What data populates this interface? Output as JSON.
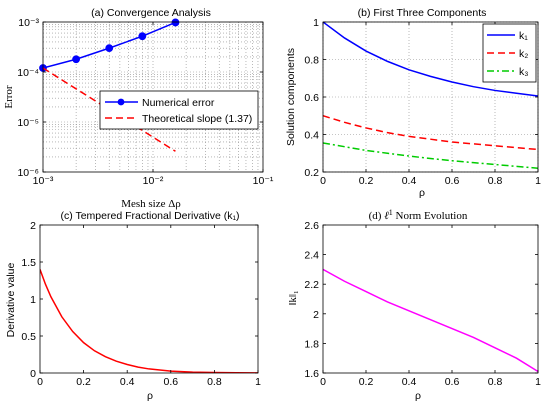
{
  "chart_data": [
    {
      "panel": "a",
      "type": "line",
      "title": "(a) Convergence Analysis",
      "xlabel": "Mesh size Δρ",
      "ylabel": "Error",
      "xscale": "log",
      "yscale": "log",
      "xlim": [
        0.001,
        0.1
      ],
      "ylim": [
        1e-06,
        0.001
      ],
      "xticks": [
        "10⁻³",
        "10⁻²",
        "10⁻¹"
      ],
      "yticks": [
        "10⁻³",
        "10⁻⁴",
        "10⁻⁵",
        "10⁻⁶"
      ],
      "grid": true,
      "legend": "center-right",
      "series": [
        {
          "name": "Numerical error",
          "color": "#0000ff",
          "style": "solid",
          "marker": "circle",
          "x": [
            0.001,
            0.002,
            0.004,
            0.008,
            0.016
          ],
          "y": [
            0.00012,
            0.00018,
            0.0003,
            0.00052,
            0.00098
          ]
        },
        {
          "name": "Theoretical slope (1.37)",
          "color": "#ff0000",
          "style": "dashed",
          "x": [
            0.001,
            0.016
          ],
          "y": [
            0.00012,
            2.6e-06
          ]
        }
      ]
    },
    {
      "panel": "b",
      "type": "line",
      "title": "(b) First Three Components",
      "xlabel": "ρ",
      "ylabel": "Solution components",
      "xlim": [
        0,
        1
      ],
      "ylim": [
        0.2,
        1
      ],
      "xticks": [
        "0",
        "0.2",
        "0.4",
        "0.6",
        "0.8",
        "1"
      ],
      "yticks": [
        "0.2",
        "0.4",
        "0.6",
        "0.8",
        "1"
      ],
      "grid": true,
      "legend": "top-right",
      "series": [
        {
          "name": "k₁",
          "color": "#0000ff",
          "style": "solid",
          "x": [
            0,
            0.1,
            0.2,
            0.3,
            0.4,
            0.5,
            0.6,
            0.7,
            0.8,
            0.9,
            1.0
          ],
          "y": [
            1.0,
            0.915,
            0.845,
            0.79,
            0.745,
            0.71,
            0.68,
            0.655,
            0.635,
            0.62,
            0.605
          ]
        },
        {
          "name": "k₂",
          "color": "#ff0000",
          "style": "dashed",
          "x": [
            0,
            0.1,
            0.2,
            0.3,
            0.4,
            0.5,
            0.6,
            0.7,
            0.8,
            0.9,
            1.0
          ],
          "y": [
            0.5,
            0.465,
            0.435,
            0.41,
            0.39,
            0.375,
            0.36,
            0.35,
            0.34,
            0.33,
            0.32
          ]
        },
        {
          "name": "k₃",
          "color": "#00cc00",
          "style": "dashdot",
          "x": [
            0,
            0.1,
            0.2,
            0.3,
            0.4,
            0.5,
            0.6,
            0.7,
            0.8,
            0.9,
            1.0
          ],
          "y": [
            0.355,
            0.335,
            0.315,
            0.3,
            0.285,
            0.272,
            0.26,
            0.25,
            0.24,
            0.23,
            0.22
          ]
        }
      ]
    },
    {
      "panel": "c",
      "type": "line",
      "title": "(c) Tempered Fractional Derivative (k₁)",
      "xlabel": "ρ",
      "ylabel": "Derivative value",
      "xlim": [
        0,
        1
      ],
      "ylim": [
        0,
        2
      ],
      "xticks": [
        "0",
        "0.2",
        "0.4",
        "0.6",
        "0.8",
        "1"
      ],
      "yticks": [
        "0",
        "0.5",
        "1",
        "1.5",
        "2"
      ],
      "grid": false,
      "series": [
        {
          "name": "",
          "color": "#ff0000",
          "style": "solid",
          "x": [
            0,
            0.025,
            0.05,
            0.1,
            0.15,
            0.2,
            0.25,
            0.3,
            0.35,
            0.4,
            0.45,
            0.5,
            0.6,
            0.7,
            0.8,
            0.9,
            1.0
          ],
          "y": [
            1.4,
            1.2,
            1.03,
            0.76,
            0.56,
            0.41,
            0.3,
            0.22,
            0.16,
            0.115,
            0.08,
            0.055,
            0.025,
            0.012,
            0.006,
            0.003,
            0.002
          ]
        }
      ]
    },
    {
      "panel": "d",
      "type": "line",
      "title_prefix": "(d) ",
      "title_sym": "ℓ",
      "title_sup": "1",
      "title_suffix": " Norm Evolution",
      "xlabel": "ρ",
      "ylabel": "‖k‖₁",
      "xlim": [
        0,
        1
      ],
      "ylim": [
        1.6,
        2.6
      ],
      "xticks": [
        "0",
        "0.2",
        "0.4",
        "0.6",
        "0.8",
        "1"
      ],
      "yticks": [
        "1.6",
        "1.8",
        "2",
        "2.2",
        "2.4",
        "2.6"
      ],
      "grid": false,
      "series": [
        {
          "name": "",
          "color": "#ff00ff",
          "style": "solid",
          "x": [
            0,
            0.1,
            0.2,
            0.3,
            0.4,
            0.5,
            0.6,
            0.7,
            0.8,
            0.9,
            1.0
          ],
          "y": [
            2.3,
            2.22,
            2.15,
            2.08,
            2.02,
            1.96,
            1.9,
            1.84,
            1.77,
            1.7,
            1.61
          ]
        }
      ]
    }
  ]
}
